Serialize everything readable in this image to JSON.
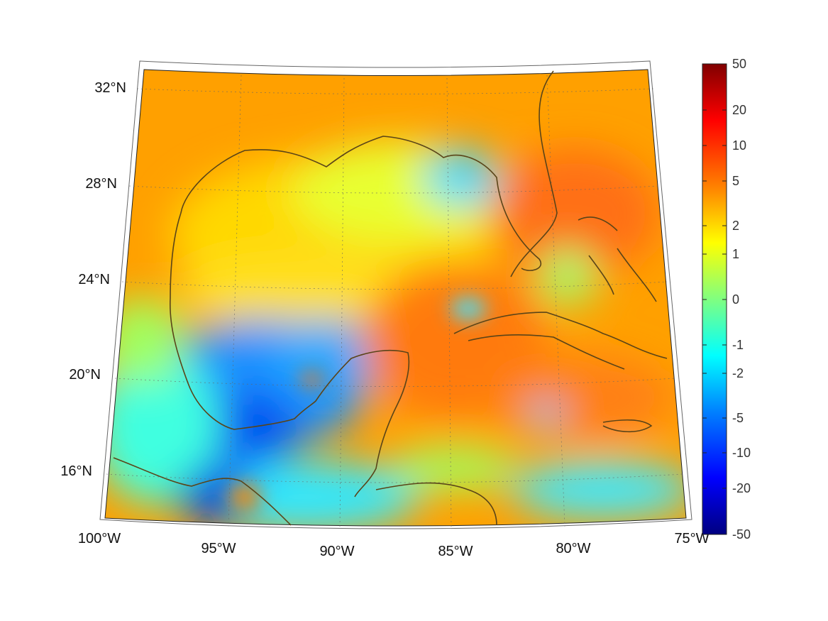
{
  "map": {
    "projection": "conic",
    "lon_range": [
      -100,
      -75
    ],
    "lat_range": [
      14,
      33
    ],
    "field": "gridded scalar field over Gulf of Mexico and Caribbean",
    "coastline_color": "#5a4418",
    "graticule": "dashed"
  },
  "lon_labels": [
    "100°W",
    "95°W",
    "90°W",
    "85°W",
    "80°W",
    "75°W"
  ],
  "lat_labels": [
    "32°N",
    "28°N",
    "24°N",
    "20°N",
    "16°N"
  ],
  "colorbar": {
    "colormap": "jet",
    "tick_labels": [
      "50",
      "20",
      "10",
      "5",
      "2",
      "1",
      "0",
      "-1",
      "-2",
      "-5",
      "-10",
      "-20",
      "-50"
    ],
    "colors": [
      "#800000",
      "#ff0000",
      "#ff8000",
      "#ffff00",
      "#80ff80",
      "#00ffff",
      "#0080ff",
      "#0000ff",
      "#000080"
    ]
  }
}
